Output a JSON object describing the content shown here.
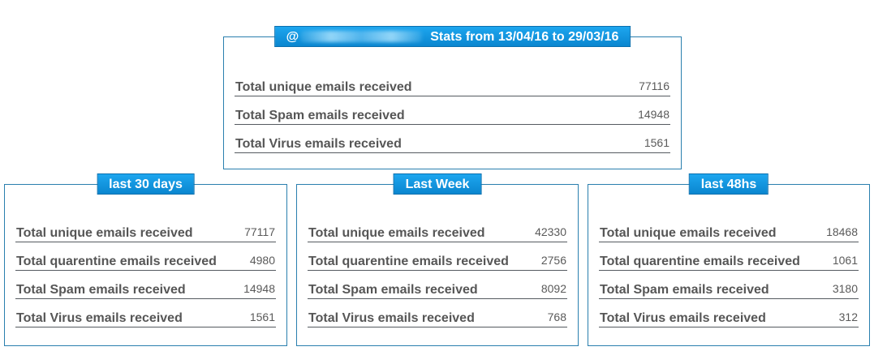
{
  "main_panel": {
    "title_prefix": "@",
    "title_text": "Stats from 13/04/16 to 29/03/16",
    "rows": [
      {
        "label": "Total unique emails received",
        "value": "77116"
      },
      {
        "label": "Total Spam emails received",
        "value": "14948"
      },
      {
        "label": "Total Virus emails received",
        "value": "1561"
      }
    ]
  },
  "panels": [
    {
      "title": "last 30 days",
      "rows": [
        {
          "label": "Total unique emails received",
          "value": "77117"
        },
        {
          "label": "Total quarentine emails received",
          "value": "4980"
        },
        {
          "label": "Total Spam emails received",
          "value": "14948"
        },
        {
          "label": "Total Virus emails received",
          "value": "1561"
        }
      ]
    },
    {
      "title": "Last Week",
      "rows": [
        {
          "label": "Total unique emails received",
          "value": "42330"
        },
        {
          "label": "Total quarentine emails received",
          "value": "2756"
        },
        {
          "label": "Total Spam emails received",
          "value": "8092"
        },
        {
          "label": "Total Virus emails received",
          "value": "768"
        }
      ]
    },
    {
      "title": "last 48hs",
      "rows": [
        {
          "label": "Total unique emails received",
          "value": "18468"
        },
        {
          "label": "Total quarentine emails received",
          "value": "1061"
        },
        {
          "label": "Total Spam emails received",
          "value": "3180"
        },
        {
          "label": "Total Virus emails received",
          "value": "312"
        }
      ]
    }
  ]
}
